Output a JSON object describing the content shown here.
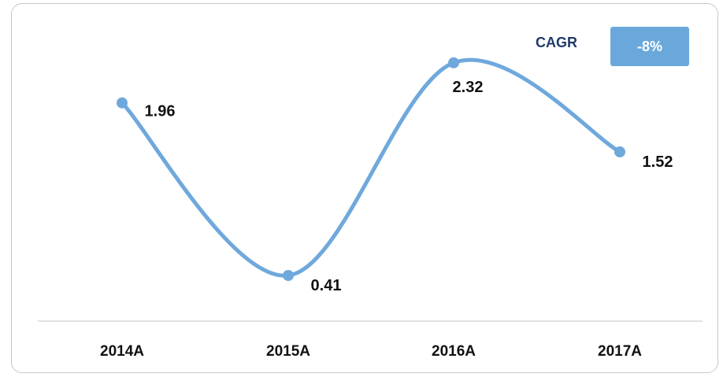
{
  "chart_data": {
    "type": "line",
    "categories": [
      "2014A",
      "2015A",
      "2016A",
      "2017A"
    ],
    "values": [
      1.96,
      0.41,
      2.32,
      1.52
    ],
    "data_labels": [
      "1.96",
      "0.41",
      "2.32",
      "1.52"
    ],
    "smooth": true,
    "title": "",
    "xlabel": "",
    "ylabel": "",
    "ylim": [
      0,
      2.7
    ],
    "grid": false,
    "legend": "none",
    "colors": {
      "line": "#6fa8dc",
      "marker": "#6fa8dc",
      "axis": "#d9d9d9",
      "label": "#111111"
    }
  },
  "cagr": {
    "label": "CAGR",
    "value": "-8%",
    "label_color": "#1f3a68",
    "box_color": "#6aa8dc"
  }
}
